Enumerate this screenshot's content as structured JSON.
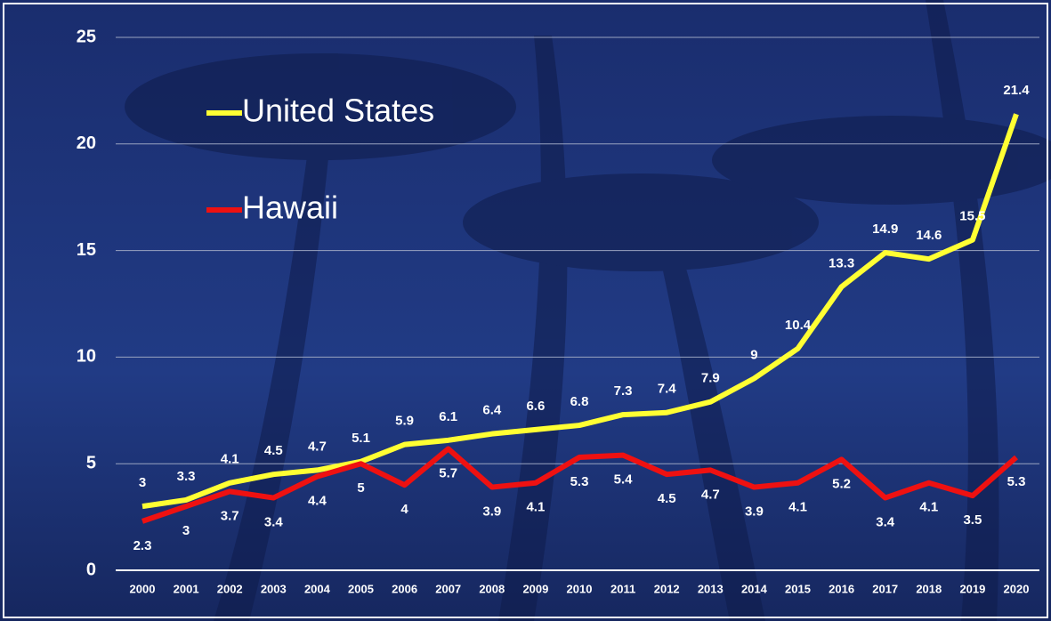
{
  "chart_data": {
    "type": "line",
    "categories": [
      "2000",
      "2001",
      "2002",
      "2003",
      "2004",
      "2005",
      "2006",
      "2007",
      "2008",
      "2009",
      "2010",
      "2011",
      "2012",
      "2013",
      "2014",
      "2015",
      "2016",
      "2017",
      "2018",
      "2019",
      "2020"
    ],
    "series": [
      {
        "name": "United States",
        "color": "#ffff33",
        "values": [
          3,
          3.3,
          4.1,
          4.5,
          4.7,
          5.1,
          5.9,
          6.1,
          6.4,
          6.6,
          6.8,
          7.3,
          7.4,
          7.9,
          9,
          10.4,
          13.3,
          14.9,
          14.6,
          15.5,
          21.4
        ]
      },
      {
        "name": "Hawaii",
        "color": "#ee1111",
        "values": [
          2.3,
          3,
          3.7,
          3.4,
          4.4,
          5,
          4,
          5.7,
          3.9,
          4.1,
          5.3,
          5.4,
          4.5,
          4.7,
          3.9,
          4.1,
          5.2,
          3.4,
          4.1,
          3.5,
          5.3
        ]
      }
    ],
    "ylim": [
      0,
      25
    ],
    "yticks": [
      0,
      5,
      10,
      15,
      20,
      25
    ],
    "grid": true
  }
}
